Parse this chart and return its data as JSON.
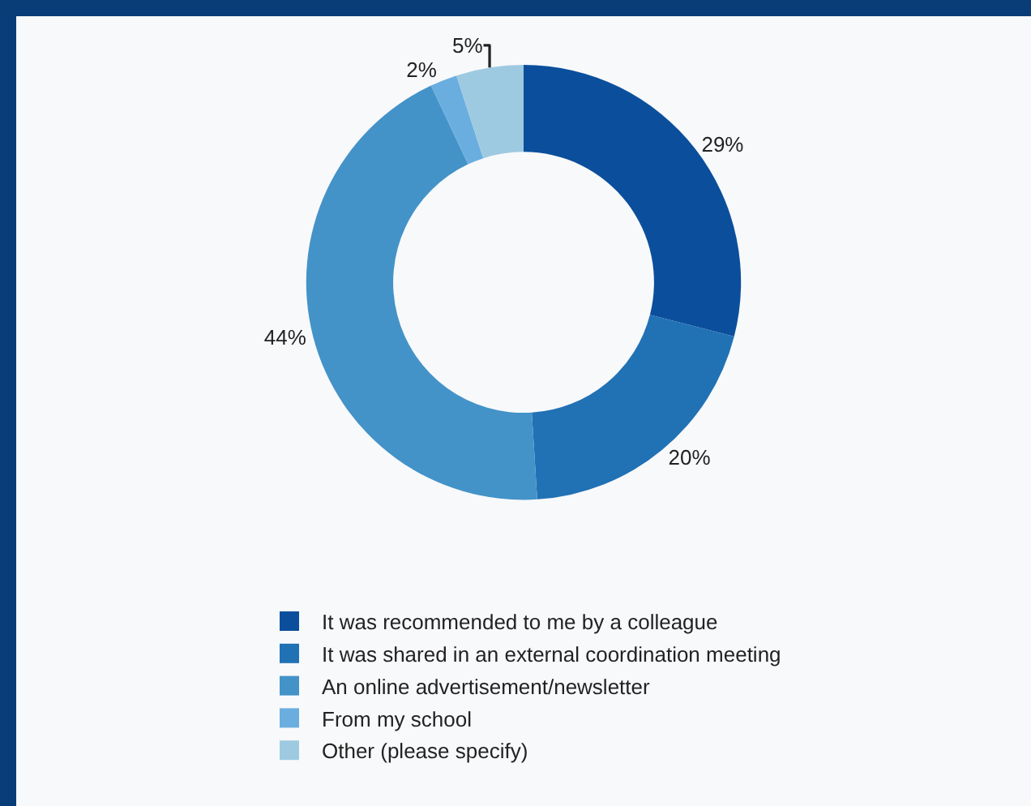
{
  "chart_data": {
    "type": "donut",
    "categories": [
      "It was recommended to me by a colleague",
      "It was shared in an external coordination meeting",
      "An online advertisement/newsletter",
      "From my school",
      "Other (please specify)"
    ],
    "values": [
      29,
      20,
      44,
      2,
      5
    ],
    "value_labels": [
      "29%",
      "20%",
      "44%",
      "2%",
      "5%"
    ],
    "colors": [
      "#0b4f9c",
      "#2171b5",
      "#4393c8",
      "#6aaee0",
      "#9ecae1"
    ],
    "legend": "bottom"
  }
}
